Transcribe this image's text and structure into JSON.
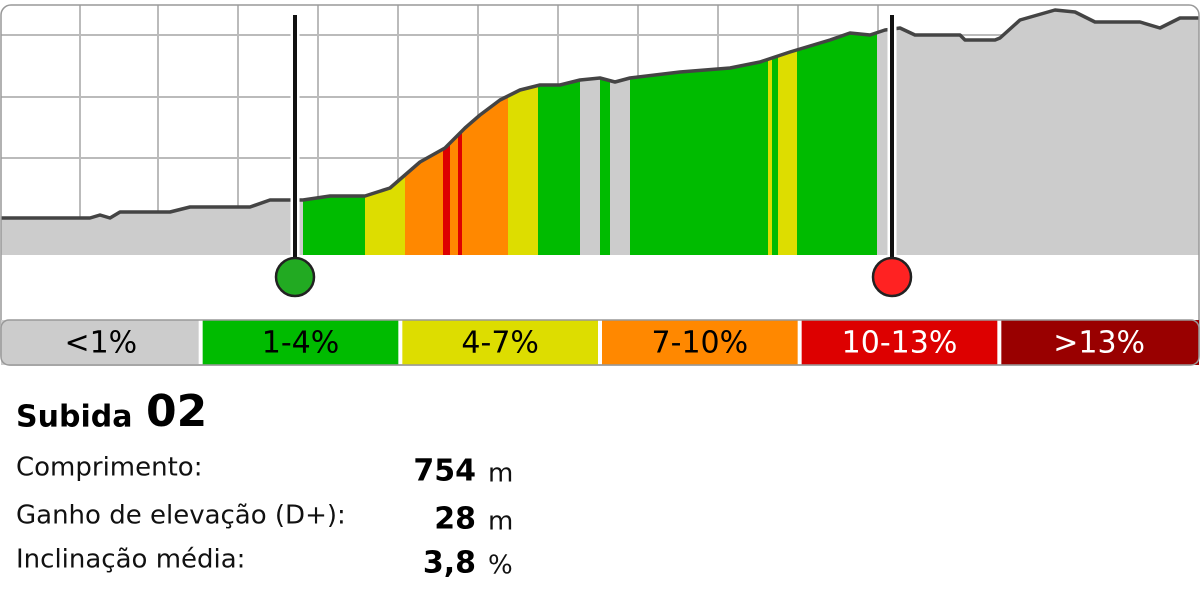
{
  "legend": [
    "<1%",
    "1-4%",
    "4-7%",
    "7-10%",
    "10-13%",
    ">13%"
  ],
  "title": {
    "label": "Subida",
    "number": "02"
  },
  "stats": [
    {
      "label": "Comprimento:",
      "value": "754",
      "unit": "m"
    },
    {
      "label": "Ganho de elevação (D+):",
      "value": "28",
      "unit": "m"
    },
    {
      "label": "Inclinação média:",
      "value": "3,8",
      "unit": "%"
    }
  ]
}
